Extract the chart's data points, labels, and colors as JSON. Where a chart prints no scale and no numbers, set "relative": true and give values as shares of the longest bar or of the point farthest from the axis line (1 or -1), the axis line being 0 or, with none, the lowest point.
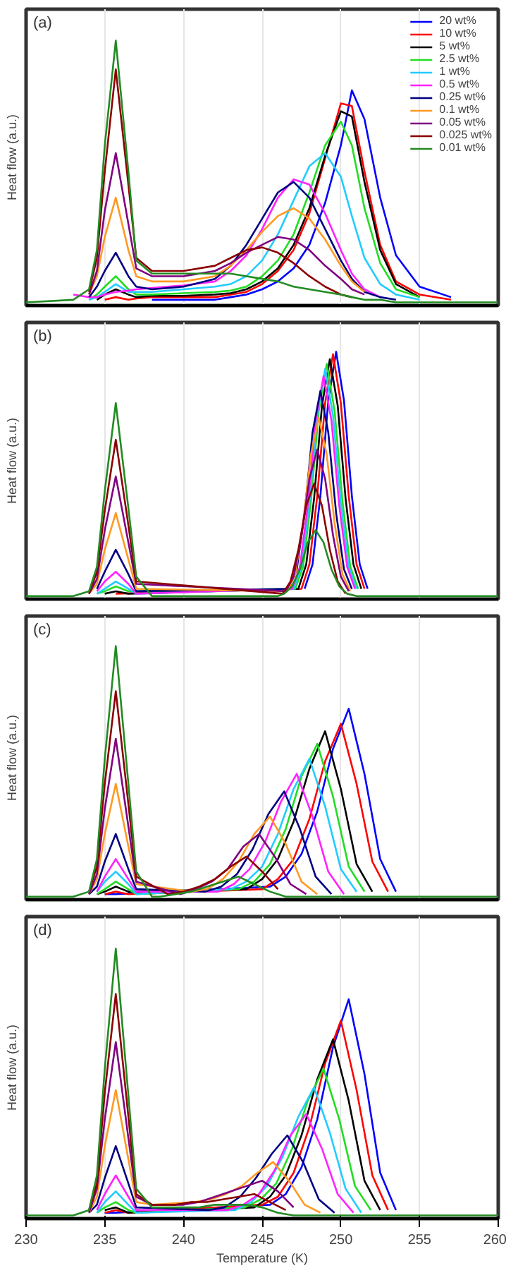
{
  "chart_data": [
    {
      "type": "line",
      "relative": true,
      "ylabel": "Heat flow (a.u.)",
      "annotations": [
        "(a)"
      ],
      "xlim": [
        230,
        260
      ],
      "xticks": [
        230,
        235,
        240,
        245,
        250,
        255,
        260
      ],
      "tick_labels": false,
      "grid": "x",
      "legend": "top right",
      "series": [
        {
          "name": "20 wt%",
          "color": "#0000ff",
          "x": [
            238,
            240,
            242,
            243,
            244,
            245,
            246,
            247,
            248,
            249,
            250,
            250.7,
            251.5,
            252.5,
            253.5,
            255,
            257
          ],
          "values": [
            0.01,
            0.01,
            0.01,
            0.02,
            0.03,
            0.05,
            0.08,
            0.13,
            0.22,
            0.38,
            0.6,
            0.81,
            0.7,
            0.4,
            0.18,
            0.06,
            0.02
          ]
        },
        {
          "name": "10 wt%",
          "color": "#ff0000",
          "x": [
            235,
            235.7,
            236.5,
            237,
            238,
            240,
            242,
            243,
            244,
            245,
            246,
            247,
            248,
            249,
            250,
            250.7,
            251.5,
            252.5,
            253.5,
            255,
            257
          ],
          "values": [
            0.01,
            0.02,
            0.01,
            0.015,
            0.02,
            0.02,
            0.02,
            0.03,
            0.04,
            0.07,
            0.12,
            0.2,
            0.34,
            0.55,
            0.76,
            0.75,
            0.5,
            0.22,
            0.08,
            0.03,
            0.01
          ]
        },
        {
          "name": "5 wt%",
          "color": "#000000",
          "x": [
            234.5,
            235,
            235.7,
            236.5,
            237,
            238,
            240,
            242,
            243,
            244,
            245,
            246,
            247,
            248,
            249,
            250,
            250.7,
            251.5,
            252.5,
            253.5,
            255
          ],
          "values": [
            0.01,
            0.03,
            0.05,
            0.03,
            0.02,
            0.025,
            0.025,
            0.03,
            0.035,
            0.05,
            0.08,
            0.13,
            0.22,
            0.36,
            0.56,
            0.73,
            0.71,
            0.46,
            0.2,
            0.07,
            0.02
          ]
        },
        {
          "name": "2.5 wt%",
          "color": "#22dd22",
          "x": [
            234,
            234.5,
            235,
            235.7,
            236.5,
            237,
            238,
            240,
            242,
            243,
            244,
            245,
            246,
            247,
            248,
            249,
            250,
            250.7,
            251.5,
            252.5,
            253.5,
            255
          ],
          "values": [
            0.01,
            0.03,
            0.06,
            0.1,
            0.05,
            0.03,
            0.03,
            0.035,
            0.04,
            0.045,
            0.06,
            0.1,
            0.16,
            0.26,
            0.42,
            0.6,
            0.69,
            0.6,
            0.36,
            0.15,
            0.05,
            0.02
          ]
        },
        {
          "name": "1 wt%",
          "color": "#22ccff",
          "x": [
            234,
            234.5,
            235,
            235.7,
            236.5,
            237,
            238,
            240,
            242,
            243,
            244,
            245,
            246,
            247,
            248,
            249,
            250,
            250.7,
            251.5,
            252.5,
            253.5,
            255
          ],
          "values": [
            0.01,
            0.02,
            0.04,
            0.07,
            0.04,
            0.04,
            0.04,
            0.05,
            0.06,
            0.07,
            0.1,
            0.16,
            0.26,
            0.39,
            0.52,
            0.57,
            0.48,
            0.33,
            0.17,
            0.07,
            0.03,
            0.01
          ]
        },
        {
          "name": "0.5 wt%",
          "color": "#ff22ff",
          "x": [
            233,
            234,
            234.5,
            235,
            235.7,
            236.5,
            237,
            238,
            240,
            242,
            243,
            244,
            245,
            246,
            247,
            248,
            249,
            250,
            250.7,
            251.5,
            252.5
          ],
          "values": [
            0.03,
            0.02,
            0.02,
            0.03,
            0.04,
            0.045,
            0.05,
            0.055,
            0.065,
            0.08,
            0.12,
            0.18,
            0.28,
            0.4,
            0.47,
            0.45,
            0.34,
            0.2,
            0.11,
            0.05,
            0.02
          ]
        },
        {
          "name": "0.25 wt%",
          "color": "#000080",
          "x": [
            234,
            234.5,
            235,
            235.7,
            236.5,
            237,
            238,
            240,
            242,
            243,
            244,
            245,
            246,
            247,
            248,
            249,
            250,
            250.7,
            251.5,
            252.5,
            253.5
          ],
          "values": [
            0.02,
            0.06,
            0.12,
            0.19,
            0.1,
            0.06,
            0.05,
            0.06,
            0.09,
            0.14,
            0.22,
            0.32,
            0.42,
            0.46,
            0.4,
            0.28,
            0.16,
            0.09,
            0.04,
            0.02,
            0.01
          ]
        },
        {
          "name": "0.1 wt%",
          "color": "#ff9922",
          "x": [
            234,
            234.5,
            235,
            235.7,
            236.5,
            237,
            238,
            240,
            242,
            243,
            244,
            245,
            246,
            247,
            248,
            249,
            250,
            250.7,
            251.5
          ],
          "values": [
            0.03,
            0.1,
            0.25,
            0.4,
            0.2,
            0.1,
            0.08,
            0.08,
            0.1,
            0.14,
            0.2,
            0.27,
            0.33,
            0.36,
            0.32,
            0.24,
            0.14,
            0.08,
            0.04
          ]
        },
        {
          "name": "0.05 wt%",
          "color": "#800080",
          "x": [
            234,
            234.5,
            235,
            235.7,
            236.5,
            237,
            238,
            240,
            242,
            243,
            244,
            245,
            246,
            247,
            248,
            249,
            250,
            250.7,
            251.5
          ],
          "values": [
            0.03,
            0.12,
            0.35,
            0.57,
            0.3,
            0.13,
            0.1,
            0.1,
            0.12,
            0.15,
            0.19,
            0.22,
            0.25,
            0.24,
            0.2,
            0.14,
            0.09,
            0.05,
            0.03
          ]
        },
        {
          "name": "0.025 wt%",
          "color": "#8b0000",
          "x": [
            234,
            234.5,
            235,
            235.7,
            236.5,
            237,
            238,
            240,
            242,
            243,
            244,
            245,
            246,
            247,
            248,
            249,
            250,
            250.7
          ],
          "values": [
            0.04,
            0.17,
            0.5,
            0.89,
            0.45,
            0.17,
            0.12,
            0.12,
            0.14,
            0.17,
            0.2,
            0.21,
            0.19,
            0.15,
            0.1,
            0.06,
            0.03,
            0.02
          ]
        },
        {
          "name": "0.01 wt%",
          "color": "#228b22",
          "x": [
            230,
            233,
            234,
            234.5,
            235,
            235.7,
            236.5,
            237,
            238,
            240,
            242,
            243,
            244,
            245,
            246,
            247,
            248,
            249,
            250,
            250.7,
            251.5,
            252.5,
            253.5,
            255,
            257,
            260
          ],
          "values": [
            0,
            0.01,
            0.05,
            0.2,
            0.6,
            1.0,
            0.5,
            0.16,
            0.11,
            0.11,
            0.11,
            0.11,
            0.1,
            0.09,
            0.08,
            0.06,
            0.05,
            0.04,
            0.03,
            0.02,
            0.01,
            0.01,
            0,
            0,
            0,
            0
          ]
        }
      ]
    },
    {
      "type": "line",
      "relative": true,
      "ylabel": "Heat flow (a.u.)",
      "annotations": [
        "(b)"
      ],
      "xlim": [
        230,
        260
      ],
      "xticks": [
        230,
        235,
        240,
        245,
        250,
        255,
        260
      ],
      "tick_labels": false,
      "grid": "x",
      "series": [
        {
          "color": "#0000ff",
          "x": [
            247.7,
            248.2,
            248.7,
            249.2,
            249.7,
            250.2,
            250.7,
            251.2,
            251.7
          ],
          "values": [
            0.03,
            0.13,
            0.41,
            0.8,
            1.0,
            0.8,
            0.41,
            0.13,
            0.03
          ]
        },
        {
          "color": "#ff0000",
          "x": [
            235.7,
            247.5,
            248,
            248.5,
            249,
            249.5,
            250,
            250.5,
            251,
            251.5
          ],
          "values": [
            0.01,
            0.03,
            0.13,
            0.41,
            0.79,
            0.99,
            0.79,
            0.41,
            0.13,
            0.03
          ]
        },
        {
          "color": "#000000",
          "x": [
            235,
            235.7,
            236.5,
            247.3,
            247.8,
            248.3,
            248.8,
            249.3,
            249.8,
            250.3,
            250.8,
            251.3
          ],
          "values": [
            0.01,
            0.02,
            0.01,
            0.03,
            0.13,
            0.4,
            0.78,
            0.97,
            0.78,
            0.4,
            0.13,
            0.03
          ]
        },
        {
          "color": "#22dd22",
          "x": [
            234.5,
            235,
            235.7,
            236.5,
            247.1,
            247.6,
            248.1,
            248.6,
            249.1,
            249.6,
            250.1,
            250.6,
            251.1
          ],
          "values": [
            0.01,
            0.02,
            0.04,
            0.02,
            0.03,
            0.12,
            0.39,
            0.76,
            0.95,
            0.76,
            0.39,
            0.12,
            0.03
          ]
        },
        {
          "color": "#22ccff",
          "x": [
            234.5,
            235,
            235.7,
            236.5,
            237,
            247,
            247.5,
            248,
            248.5,
            249,
            249.5,
            250,
            250.5,
            251
          ],
          "values": [
            0.01,
            0.03,
            0.06,
            0.03,
            0.01,
            0.03,
            0.12,
            0.38,
            0.74,
            0.93,
            0.74,
            0.38,
            0.12,
            0.03
          ]
        },
        {
          "color": "#ff22ff",
          "x": [
            234.5,
            235,
            235.7,
            236.5,
            237,
            246.9,
            247.4,
            247.9,
            248.4,
            248.9,
            249.4,
            249.9,
            250.4,
            250.9
          ],
          "values": [
            0.02,
            0.06,
            0.1,
            0.05,
            0.01,
            0.03,
            0.12,
            0.37,
            0.72,
            0.9,
            0.72,
            0.37,
            0.12,
            0.03
          ]
        },
        {
          "color": "#000080",
          "x": [
            234.5,
            235,
            235.7,
            236.5,
            237,
            246.7,
            247.2,
            247.7,
            248.2,
            248.7,
            249.2,
            249.7,
            250.2,
            250.7
          ],
          "values": [
            0.03,
            0.1,
            0.19,
            0.09,
            0.02,
            0.03,
            0.11,
            0.34,
            0.67,
            0.84,
            0.67,
            0.34,
            0.11,
            0.03
          ]
        },
        {
          "color": "#ff9922",
          "x": [
            234,
            234.5,
            235,
            235.7,
            236.5,
            237,
            246.6,
            247.1,
            247.6,
            248.1,
            248.6,
            249.1,
            249.6,
            250.1,
            250.6
          ],
          "values": [
            0.01,
            0.05,
            0.19,
            0.34,
            0.15,
            0.03,
            0.02,
            0.09,
            0.3,
            0.58,
            0.73,
            0.58,
            0.3,
            0.09,
            0.02
          ]
        },
        {
          "color": "#800080",
          "x": [
            234,
            234.5,
            235,
            235.7,
            236.5,
            237,
            246.5,
            247,
            247.5,
            248,
            248.5,
            249,
            249.5,
            250,
            250.5
          ],
          "values": [
            0.01,
            0.07,
            0.27,
            0.49,
            0.22,
            0.05,
            0.02,
            0.08,
            0.25,
            0.48,
            0.6,
            0.48,
            0.25,
            0.08,
            0.02
          ]
        },
        {
          "color": "#8b0000",
          "x": [
            234,
            234.5,
            235,
            235.7,
            236.5,
            237,
            246.3,
            246.8,
            247.3,
            247.8,
            248.3,
            248.8,
            249.3,
            249.8,
            250.3
          ],
          "values": [
            0.01,
            0.1,
            0.35,
            0.64,
            0.29,
            0.06,
            0.01,
            0.06,
            0.19,
            0.37,
            0.46,
            0.37,
            0.19,
            0.06,
            0.01
          ]
        },
        {
          "color": "#228b22",
          "x": [
            230,
            233,
            234,
            234.5,
            235,
            235.7,
            236.5,
            237,
            238,
            242,
            246,
            246.4,
            246.9,
            247.4,
            247.9,
            248.4,
            248.9,
            249.4,
            249.9,
            250.4,
            251,
            255,
            260
          ],
          "values": [
            0,
            0,
            0.02,
            0.12,
            0.43,
            0.79,
            0.36,
            0.08,
            0,
            0,
            0,
            0.01,
            0.04,
            0.11,
            0.22,
            0.27,
            0.22,
            0.11,
            0.04,
            0.01,
            0,
            0,
            0
          ]
        }
      ]
    },
    {
      "type": "line",
      "relative": true,
      "ylabel": "Heat flow (a.u.)",
      "annotations": [
        "(c)"
      ],
      "xlim": [
        230,
        260
      ],
      "xticks": [
        230,
        235,
        240,
        245,
        250,
        255,
        260
      ],
      "tick_labels": false,
      "grid": "x",
      "series": [
        {
          "color": "#0000ff",
          "x": [
            235,
            235.7,
            245.5,
            246.5,
            247.5,
            248.5,
            249.5,
            250.5,
            251.5,
            252.5,
            253.5
          ],
          "values": [
            0.01,
            0.01,
            0.04,
            0.08,
            0.17,
            0.34,
            0.59,
            0.75,
            0.49,
            0.15,
            0.02
          ]
        },
        {
          "color": "#ff0000",
          "x": [
            235,
            235.7,
            236.5,
            245,
            246,
            247,
            248,
            249,
            250,
            251,
            252,
            253
          ],
          "values": [
            0.01,
            0.02,
            0.01,
            0.03,
            0.07,
            0.15,
            0.31,
            0.54,
            0.69,
            0.45,
            0.14,
            0.02
          ]
        },
        {
          "color": "#000000",
          "x": [
            234.5,
            235,
            235.7,
            236.5,
            244,
            245,
            246,
            247,
            248,
            249,
            250,
            251,
            252
          ],
          "values": [
            0.01,
            0.02,
            0.04,
            0.02,
            0.03,
            0.07,
            0.15,
            0.3,
            0.51,
            0.66,
            0.43,
            0.13,
            0.02
          ]
        },
        {
          "color": "#22dd22",
          "x": [
            234.5,
            235,
            235.7,
            236.5,
            237,
            243.5,
            244.5,
            245.5,
            246.5,
            247.5,
            248.5,
            249.5,
            250.5,
            251.5
          ],
          "values": [
            0.01,
            0.03,
            0.06,
            0.03,
            0.01,
            0.03,
            0.06,
            0.13,
            0.27,
            0.48,
            0.61,
            0.4,
            0.12,
            0.02
          ]
        },
        {
          "color": "#22ccff",
          "x": [
            234.5,
            235,
            235.7,
            236.5,
            237,
            243,
            244,
            245,
            246,
            247,
            248,
            249,
            250,
            251
          ],
          "values": [
            0.02,
            0.06,
            0.1,
            0.05,
            0.01,
            0.03,
            0.06,
            0.12,
            0.25,
            0.43,
            0.55,
            0.36,
            0.11,
            0.02
          ]
        },
        {
          "color": "#ff22ff",
          "x": [
            234.5,
            235,
            235.7,
            236.5,
            237,
            242.2,
            243.2,
            244.2,
            245.2,
            246.2,
            247.2,
            248.2,
            249.2,
            250.2
          ],
          "values": [
            0.02,
            0.08,
            0.15,
            0.07,
            0.02,
            0.02,
            0.05,
            0.11,
            0.22,
            0.38,
            0.49,
            0.32,
            0.1,
            0.01
          ]
        },
        {
          "color": "#000080",
          "x": [
            234,
            234.5,
            235,
            235.7,
            236.5,
            237,
            241.4,
            242.4,
            243.4,
            244.4,
            245.4,
            246.4,
            247.4,
            248.4,
            249.4
          ],
          "values": [
            0.01,
            0.04,
            0.14,
            0.25,
            0.11,
            0.03,
            0.02,
            0.04,
            0.09,
            0.19,
            0.33,
            0.42,
            0.27,
            0.08,
            0.01
          ]
        },
        {
          "color": "#ff9922",
          "x": [
            234,
            234.5,
            235,
            235.7,
            236.5,
            237,
            240.5,
            241.5,
            242.5,
            243.5,
            244.5,
            245.5,
            246.5,
            247.5,
            248.5
          ],
          "values": [
            0.01,
            0.07,
            0.25,
            0.45,
            0.2,
            0.05,
            0.02,
            0.03,
            0.07,
            0.14,
            0.25,
            0.32,
            0.21,
            0.06,
            0.01
          ]
        },
        {
          "color": "#800080",
          "x": [
            234,
            234.5,
            235,
            235.7,
            236.5,
            237,
            239.8,
            240.8,
            241.8,
            242.8,
            243.8,
            244.8,
            245.8,
            246.8,
            247.8
          ],
          "values": [
            0.01,
            0.09,
            0.35,
            0.63,
            0.28,
            0.06,
            0.01,
            0.03,
            0.06,
            0.11,
            0.2,
            0.25,
            0.16,
            0.05,
            0.01
          ]
        },
        {
          "color": "#8b0000",
          "x": [
            234,
            234.5,
            235,
            235.7,
            236.5,
            237,
            239,
            240,
            241,
            242,
            243,
            244,
            245,
            246
          ],
          "values": [
            0.02,
            0.12,
            0.45,
            0.82,
            0.37,
            0.08,
            0.01,
            0.02,
            0.04,
            0.07,
            0.12,
            0.16,
            0.1,
            0.03
          ]
        },
        {
          "color": "#228b22",
          "x": [
            230,
            233,
            234,
            234.5,
            235,
            235.7,
            236.5,
            237,
            238,
            238.5,
            239.5,
            240.5,
            241.5,
            242.5,
            243.5,
            244.5,
            245.5,
            246.5,
            260
          ],
          "values": [
            0,
            0,
            0.02,
            0.15,
            0.55,
            1.0,
            0.45,
            0.1,
            0,
            0,
            0.01,
            0.02,
            0.04,
            0.06,
            0.08,
            0.05,
            0.02,
            0,
            0
          ]
        }
      ]
    },
    {
      "type": "line",
      "relative": true,
      "ylabel": "Heat flow (a.u.)",
      "xlabel": "Temperature (K)",
      "annotations": [
        "(d)"
      ],
      "xlim": [
        230,
        260
      ],
      "xticks": [
        230,
        235,
        240,
        245,
        250,
        255,
        260
      ],
      "tick_labels": "x",
      "grid": "x",
      "series": [
        {
          "color": "#0000ff",
          "x": [
            235,
            235.7,
            245.5,
            246.5,
            247.5,
            248.5,
            249.5,
            250.5,
            251.5,
            252.5,
            253.5
          ],
          "values": [
            0.01,
            0.01,
            0.04,
            0.08,
            0.18,
            0.36,
            0.63,
            0.81,
            0.53,
            0.16,
            0.02
          ]
        },
        {
          "color": "#ff0000",
          "x": [
            235,
            235.7,
            236.5,
            245,
            246,
            247,
            248,
            249,
            250,
            251,
            252,
            253
          ],
          "values": [
            0.01,
            0.02,
            0.01,
            0.04,
            0.07,
            0.16,
            0.33,
            0.57,
            0.73,
            0.47,
            0.15,
            0.02
          ]
        },
        {
          "color": "#000000",
          "x": [
            235,
            235.7,
            236.5,
            244.5,
            245.5,
            246.5,
            247.5,
            248.5,
            249.5,
            250.5,
            251.5,
            252.5
          ],
          "values": [
            0.02,
            0.03,
            0.01,
            0.03,
            0.07,
            0.15,
            0.3,
            0.51,
            0.66,
            0.43,
            0.13,
            0.02
          ]
        },
        {
          "color": "#22dd22",
          "x": [
            234.5,
            235,
            235.7,
            236.5,
            237,
            243.9,
            244.9,
            245.9,
            246.9,
            247.9,
            248.9,
            249.9,
            250.9,
            251.9
          ],
          "values": [
            0.01,
            0.03,
            0.05,
            0.02,
            0.01,
            0.03,
            0.06,
            0.12,
            0.25,
            0.43,
            0.55,
            0.36,
            0.11,
            0.02
          ]
        },
        {
          "color": "#22ccff",
          "x": [
            234.5,
            235,
            235.7,
            236.5,
            237,
            243.3,
            244.3,
            245.3,
            246.3,
            247.3,
            248.3,
            249.3,
            250.3,
            251.3
          ],
          "values": [
            0.01,
            0.05,
            0.09,
            0.04,
            0.01,
            0.02,
            0.05,
            0.11,
            0.22,
            0.37,
            0.48,
            0.31,
            0.1,
            0.01
          ]
        },
        {
          "color": "#ff22ff",
          "x": [
            234.5,
            235,
            235.7,
            236.5,
            237,
            242.8,
            243.8,
            244.8,
            245.8,
            246.8,
            247.8,
            248.8,
            249.8,
            250.8
          ],
          "values": [
            0.02,
            0.08,
            0.15,
            0.07,
            0.02,
            0.02,
            0.04,
            0.08,
            0.17,
            0.3,
            0.38,
            0.25,
            0.08,
            0.01
          ]
        },
        {
          "color": "#000080",
          "x": [
            234,
            234.5,
            235,
            235.7,
            236.5,
            237,
            241.6,
            242.6,
            243.6,
            244.6,
            245.6,
            246.6,
            247.6,
            248.6,
            249.6
          ],
          "values": [
            0.01,
            0.04,
            0.14,
            0.26,
            0.12,
            0.03,
            0.02,
            0.03,
            0.07,
            0.14,
            0.23,
            0.3,
            0.2,
            0.06,
            0.01
          ]
        },
        {
          "color": "#ff9922",
          "x": [
            234,
            234.5,
            235,
            235.7,
            236.5,
            237,
            238,
            240.7,
            241.7,
            242.7,
            243.7,
            244.7,
            245.7,
            246.7,
            247.7,
            248.7
          ],
          "values": [
            0.01,
            0.07,
            0.26,
            0.47,
            0.21,
            0.05,
            0.04,
            0.05,
            0.06,
            0.08,
            0.11,
            0.16,
            0.2,
            0.13,
            0.04,
            0.01
          ]
        },
        {
          "color": "#800080",
          "x": [
            234,
            234.5,
            235,
            235.7,
            236.5,
            237,
            238,
            240,
            241,
            242,
            243,
            244,
            245,
            246,
            247
          ],
          "values": [
            0.01,
            0.1,
            0.36,
            0.65,
            0.29,
            0.07,
            0.04,
            0.04,
            0.05,
            0.07,
            0.09,
            0.11,
            0.13,
            0.09,
            0.03
          ]
        },
        {
          "color": "#8b0000",
          "x": [
            234,
            234.5,
            235,
            235.7,
            236.5,
            237,
            238,
            239.5,
            240.5,
            241.5,
            242.5,
            243.5,
            244.5,
            245.5,
            246.5
          ],
          "values": [
            0.02,
            0.12,
            0.46,
            0.83,
            0.37,
            0.08,
            0.04,
            0.04,
            0.05,
            0.05,
            0.06,
            0.07,
            0.08,
            0.05,
            0.02
          ]
        },
        {
          "color": "#228b22",
          "x": [
            230,
            233,
            234,
            234.5,
            235,
            235.7,
            236.5,
            237,
            238,
            239,
            240,
            241,
            242,
            243,
            244,
            245,
            246,
            247,
            260
          ],
          "values": [
            0,
            0,
            0.02,
            0.15,
            0.55,
            1.0,
            0.45,
            0.1,
            0.03,
            0.03,
            0.03,
            0.03,
            0.04,
            0.04,
            0.04,
            0.03,
            0.01,
            0,
            0
          ]
        }
      ]
    }
  ]
}
